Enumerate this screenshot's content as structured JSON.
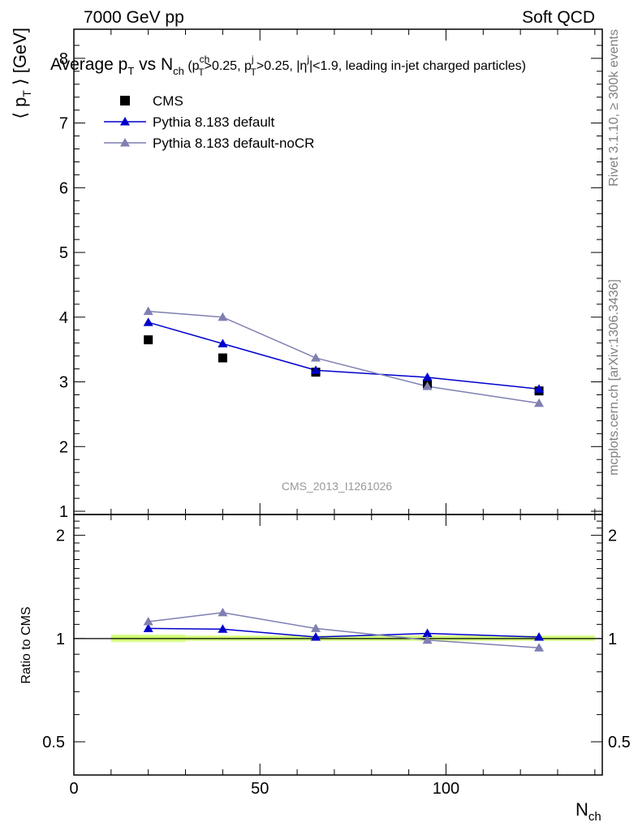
{
  "header": {
    "energy": "7000 GeV pp",
    "category": "Soft QCD"
  },
  "side_labels": {
    "rivet": "Rivet 3.1.10, ≥ 300k events",
    "mcplots": "mcplots.cern.ch [arXiv:1306.3436]"
  },
  "analysis_id": "CMS_2013_I1261026",
  "colors": {
    "cms": "#000000",
    "pythia_default": "#0000cc",
    "pythia_nocr": "#7f7fb2",
    "band": "#ccff66"
  },
  "chart_data": {
    "type": "line",
    "title": {
      "main": "Average p",
      "main_sub": "T",
      "vs": " vs N",
      "vs_sub": "ch",
      "cuts": " (p",
      "cut1_sup": "ch",
      "cut1_sub": "T",
      "cut1_val": ">0.25, p",
      "cut2_sup": "j",
      "cut2_sub": "T",
      "cut2_val": ">0.25, |η",
      "cut3_sup": "j",
      "cut3_val": "|<1.9, leading in-jet charged particles)"
    },
    "ylabel": {
      "left": "⟨ p",
      "sub": "T",
      "right": " ⟩ [GeV]"
    },
    "xlabel": {
      "main": "N",
      "sub": "ch"
    },
    "ratio_ylabel": "Ratio to CMS",
    "xlim": [
      0,
      142
    ],
    "ylim": [
      0.95,
      8.45
    ],
    "ratio_ylim": [
      0.4,
      2.3
    ],
    "x_ticks": [
      {
        "value": 0,
        "label": "0"
      },
      {
        "value": 50,
        "label": "50"
      },
      {
        "value": 100,
        "label": "100"
      }
    ],
    "y_ticks": [
      {
        "value": 1,
        "label": "1"
      },
      {
        "value": 2,
        "label": "2"
      },
      {
        "value": 3,
        "label": "3"
      },
      {
        "value": 4,
        "label": "4"
      },
      {
        "value": 5,
        "label": "5"
      },
      {
        "value": 6,
        "label": "6"
      },
      {
        "value": 7,
        "label": "7"
      },
      {
        "value": 8,
        "label": "8"
      }
    ],
    "ratio_ticks": [
      {
        "value": 0.5,
        "label": "0.5"
      },
      {
        "value": 1,
        "label": "1"
      },
      {
        "value": 2,
        "label": "2"
      }
    ],
    "x": [
      20,
      40,
      65,
      95,
      125
    ],
    "series": [
      {
        "name": "CMS",
        "marker": "square",
        "line": false,
        "values": [
          3.65,
          3.37,
          3.15,
          2.97,
          2.86
        ],
        "ratio": [
          1.0,
          1.0,
          1.0,
          1.0,
          1.0
        ]
      },
      {
        "name": "Pythia 8.183 default",
        "marker": "triangle",
        "line": true,
        "values": [
          3.92,
          3.59,
          3.18,
          3.07,
          2.89
        ],
        "ratio": [
          1.07,
          1.065,
          1.01,
          1.035,
          1.01
        ]
      },
      {
        "name": "Pythia 8.183 default-noCR",
        "marker": "triangle",
        "line": true,
        "values": [
          4.09,
          4.0,
          3.37,
          2.93,
          2.67
        ],
        "ratio": [
          1.12,
          1.19,
          1.07,
          0.99,
          0.94
        ]
      }
    ],
    "legend_position": "top-left"
  }
}
